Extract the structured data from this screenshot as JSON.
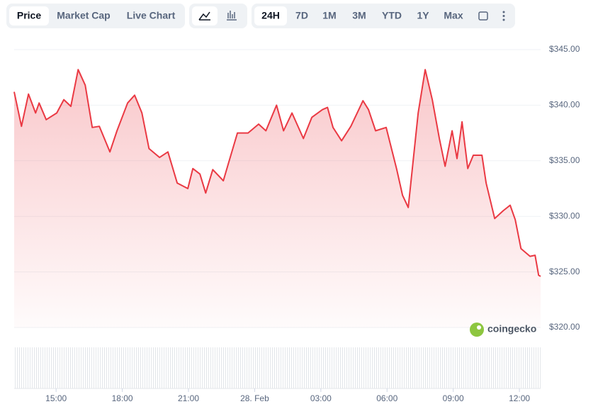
{
  "tabs": [
    "Price",
    "Market Cap",
    "Live Chart"
  ],
  "ranges": [
    "24H",
    "7D",
    "1M",
    "3M",
    "YTD",
    "1Y",
    "Max"
  ],
  "brand": "coingecko",
  "chart_data": {
    "type": "line",
    "color": "#ea3943",
    "grid": true,
    "x": [
      13.1,
      13.43,
      13.75,
      14.07,
      14.23,
      14.55,
      15.03,
      15.35,
      15.67,
      16.0,
      16.32,
      16.64,
      16.96,
      17.44,
      17.76,
      18.24,
      18.56,
      18.89,
      19.21,
      19.69,
      20.07,
      20.49,
      20.97,
      21.2,
      21.52,
      21.78,
      22.1,
      22.58,
      22.8,
      23.22,
      23.7,
      24.18,
      24.51,
      24.99,
      25.31,
      25.69,
      26.21,
      26.59,
      27.07,
      27.3,
      27.55,
      27.94,
      28.36,
      28.91,
      29.16,
      29.48,
      29.96,
      30.44,
      30.7,
      30.96,
      31.41,
      31.73,
      32.05,
      32.37,
      32.63,
      32.95,
      33.17,
      33.4,
      33.66,
      33.91,
      34.3,
      34.49,
      34.88,
      35.26,
      35.58,
      35.81,
      36.07,
      36.48,
      36.71,
      36.87,
      36.96
    ],
    "values": [
      341.2,
      338.1,
      341,
      339.3,
      340.2,
      338.7,
      339.3,
      340.5,
      339.9,
      343.2,
      341.8,
      338,
      338.1,
      335.8,
      337.7,
      340.2,
      340.9,
      339.3,
      336.1,
      335.3,
      335.8,
      333,
      332.5,
      334.3,
      333.8,
      332.1,
      334.2,
      333.2,
      334.7,
      337.5,
      337.5,
      338.3,
      337.7,
      340,
      337.7,
      339.3,
      337,
      338.9,
      339.6,
      339.8,
      338,
      336.8,
      338.1,
      340.4,
      339.6,
      337.7,
      338,
      334.2,
      331.9,
      330.8,
      339.3,
      343.2,
      340.5,
      337,
      334.5,
      337.7,
      335.2,
      338.5,
      334.3,
      335.5,
      335.5,
      333,
      329.8,
      330.5,
      331,
      329.7,
      327.1,
      326.4,
      326.5,
      324.7,
      324.6
    ],
    "xlim": [
      13.1,
      36.96
    ],
    "xticks": [
      {
        "value": 15,
        "label": "15:00"
      },
      {
        "value": 18,
        "label": "18:00"
      },
      {
        "value": 21,
        "label": "21:00"
      },
      {
        "value": 24,
        "label": "28. Feb"
      },
      {
        "value": 27,
        "label": "03:00"
      },
      {
        "value": 30,
        "label": "06:00"
      },
      {
        "value": 33,
        "label": "09:00"
      },
      {
        "value": 36,
        "label": "12:00"
      }
    ],
    "ylim": [
      320,
      345
    ],
    "yticks": [
      {
        "value": 320,
        "label": "$320.00"
      },
      {
        "value": 325,
        "label": "$325.00"
      },
      {
        "value": 330,
        "label": "$330.00"
      },
      {
        "value": 335,
        "label": "$335.00"
      },
      {
        "value": 340,
        "label": "$340.00"
      },
      {
        "value": 345,
        "label": "$345.00"
      }
    ]
  }
}
